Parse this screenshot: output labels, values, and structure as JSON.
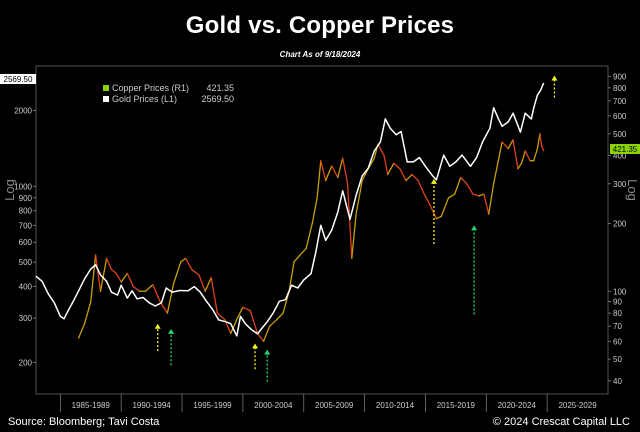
{
  "header": {
    "title": "Gold vs. Copper Prices",
    "subtitle": "Chart As of 9/18/2024"
  },
  "footer": {
    "source": "Source: Bloomberg; Tavi Costa",
    "copyright": "© 2024 Crescat Capital LLC"
  },
  "colors": {
    "gold": "#ffffff",
    "copper_up": "#c9a000",
    "copper_down": "#e0401b",
    "copper_legend": "#8cd400",
    "arrow_yellow": "#f2f21e",
    "arrow_green": "#27d76b",
    "last_copper_tag": "#8cd400"
  },
  "chart_data": {
    "type": "line",
    "log_scale": true,
    "left_axis_label": "Log",
    "right_axis_label": "Log",
    "left_ticks": [
      "2000",
      "1000",
      "900",
      "800",
      "700",
      "600",
      "500",
      "400",
      "300",
      "200"
    ],
    "right_ticks": [
      "900",
      "800",
      "700",
      "600",
      "500",
      "400",
      "300",
      "200",
      "100",
      "90",
      "80",
      "70",
      "60",
      "50",
      "40"
    ],
    "ylim_left": [
      150,
      3000
    ],
    "ylim_right": [
      35,
      1000
    ],
    "x_categories": [
      "1985-1989",
      "1990-1994",
      "1995-1999",
      "2000-2004",
      "2005-2009",
      "2010-2014",
      "2015-2019",
      "2020-2024",
      "2025-2029"
    ],
    "xlim": [
      1983,
      2030
    ],
    "legend": [
      {
        "name": "Copper Prices (R1)",
        "value": "421.35"
      },
      {
        "name": "Gold Prices (L1)",
        "value": "2569.50"
      }
    ],
    "last_gold_tag": "2569.50",
    "last_copper_tag": "421.35",
    "series": [
      {
        "name": "Gold Prices (L1)",
        "axis": "left",
        "points": [
          [
            1983.0,
            440
          ],
          [
            1983.5,
            420
          ],
          [
            1984.0,
            375
          ],
          [
            1984.5,
            345
          ],
          [
            1985.0,
            305
          ],
          [
            1985.3,
            298
          ],
          [
            1985.7,
            325
          ],
          [
            1986.0,
            345
          ],
          [
            1986.5,
            385
          ],
          [
            1987.0,
            430
          ],
          [
            1987.5,
            470
          ],
          [
            1987.9,
            488
          ],
          [
            1988.3,
            445
          ],
          [
            1988.8,
            420
          ],
          [
            1989.2,
            380
          ],
          [
            1989.7,
            370
          ],
          [
            1990.0,
            405
          ],
          [
            1990.5,
            360
          ],
          [
            1990.9,
            385
          ],
          [
            1991.3,
            358
          ],
          [
            1991.8,
            362
          ],
          [
            1992.3,
            345
          ],
          [
            1992.8,
            335
          ],
          [
            1993.3,
            345
          ],
          [
            1993.7,
            395
          ],
          [
            1994.2,
            380
          ],
          [
            1994.8,
            386
          ],
          [
            1995.5,
            385
          ],
          [
            1996.0,
            400
          ],
          [
            1996.5,
            380
          ],
          [
            1997.0,
            350
          ],
          [
            1997.5,
            325
          ],
          [
            1998.0,
            295
          ],
          [
            1998.6,
            290
          ],
          [
            1999.0,
            285
          ],
          [
            1999.5,
            255
          ],
          [
            1999.8,
            305
          ],
          [
            2000.2,
            285
          ],
          [
            2000.7,
            270
          ],
          [
            2001.2,
            260
          ],
          [
            2001.6,
            275
          ],
          [
            2002.0,
            290
          ],
          [
            2002.5,
            315
          ],
          [
            2003.0,
            350
          ],
          [
            2003.5,
            355
          ],
          [
            2004.0,
            405
          ],
          [
            2004.5,
            395
          ],
          [
            2005.0,
            425
          ],
          [
            2005.6,
            450
          ],
          [
            2006.0,
            550
          ],
          [
            2006.4,
            700
          ],
          [
            2006.8,
            610
          ],
          [
            2007.3,
            670
          ],
          [
            2007.8,
            790
          ],
          [
            2008.2,
            960
          ],
          [
            2008.8,
            740
          ],
          [
            2009.3,
            920
          ],
          [
            2009.8,
            1100
          ],
          [
            2010.3,
            1180
          ],
          [
            2010.8,
            1380
          ],
          [
            2011.3,
            1500
          ],
          [
            2011.7,
            1850
          ],
          [
            2012.1,
            1700
          ],
          [
            2012.6,
            1600
          ],
          [
            2013.0,
            1650
          ],
          [
            2013.5,
            1250
          ],
          [
            2014.0,
            1250
          ],
          [
            2014.5,
            1300
          ],
          [
            2015.0,
            1200
          ],
          [
            2015.6,
            1100
          ],
          [
            2015.9,
            1060
          ],
          [
            2016.5,
            1330
          ],
          [
            2017.0,
            1200
          ],
          [
            2017.5,
            1250
          ],
          [
            2018.0,
            1330
          ],
          [
            2018.7,
            1200
          ],
          [
            2019.2,
            1300
          ],
          [
            2019.7,
            1500
          ],
          [
            2020.3,
            1700
          ],
          [
            2020.6,
            2050
          ],
          [
            2021.0,
            1850
          ],
          [
            2021.3,
            1730
          ],
          [
            2021.8,
            1800
          ],
          [
            2022.2,
            1950
          ],
          [
            2022.8,
            1640
          ],
          [
            2023.2,
            1950
          ],
          [
            2023.7,
            1850
          ],
          [
            2023.9,
            2050
          ],
          [
            2024.2,
            2300
          ],
          [
            2024.45,
            2400
          ],
          [
            2024.72,
            2569.5
          ]
        ]
      },
      {
        "name": "Copper Prices (R1)",
        "axis": "right",
        "points": [
          [
            1986.5,
            62
          ],
          [
            1987.0,
            72
          ],
          [
            1987.5,
            90
          ],
          [
            1987.9,
            145
          ],
          [
            1988.3,
            100
          ],
          [
            1988.8,
            140
          ],
          [
            1989.2,
            125
          ],
          [
            1989.6,
            120
          ],
          [
            1990.0,
            110
          ],
          [
            1990.5,
            120
          ],
          [
            1991.0,
            105
          ],
          [
            1991.5,
            100
          ],
          [
            1992.0,
            100
          ],
          [
            1992.6,
            107
          ],
          [
            1993.2,
            90
          ],
          [
            1993.8,
            80
          ],
          [
            1994.3,
            108
          ],
          [
            1994.9,
            135
          ],
          [
            1995.3,
            140
          ],
          [
            1995.8,
            125
          ],
          [
            1996.4,
            118
          ],
          [
            1996.9,
            100
          ],
          [
            1997.4,
            115
          ],
          [
            1997.9,
            80
          ],
          [
            1998.5,
            75
          ],
          [
            1999.0,
            65
          ],
          [
            1999.5,
            75
          ],
          [
            2000.0,
            85
          ],
          [
            2000.6,
            82
          ],
          [
            2001.2,
            65
          ],
          [
            2001.7,
            60
          ],
          [
            2002.2,
            70
          ],
          [
            2002.8,
            75
          ],
          [
            2003.3,
            80
          ],
          [
            2003.8,
            100
          ],
          [
            2004.2,
            135
          ],
          [
            2004.7,
            145
          ],
          [
            2005.2,
            155
          ],
          [
            2005.7,
            200
          ],
          [
            2006.1,
            260
          ],
          [
            2006.4,
            380
          ],
          [
            2006.8,
            310
          ],
          [
            2007.3,
            360
          ],
          [
            2007.8,
            320
          ],
          [
            2008.2,
            390
          ],
          [
            2008.6,
            300
          ],
          [
            2008.95,
            140
          ],
          [
            2009.3,
            220
          ],
          [
            2009.8,
            310
          ],
          [
            2010.3,
            350
          ],
          [
            2010.8,
            390
          ],
          [
            2011.1,
            450
          ],
          [
            2011.6,
            400
          ],
          [
            2011.9,
            330
          ],
          [
            2012.4,
            370
          ],
          [
            2012.9,
            350
          ],
          [
            2013.4,
            310
          ],
          [
            2013.9,
            330
          ],
          [
            2014.4,
            310
          ],
          [
            2014.9,
            270
          ],
          [
            2015.4,
            240
          ],
          [
            2015.9,
            210
          ],
          [
            2016.3,
            215
          ],
          [
            2016.9,
            260
          ],
          [
            2017.4,
            270
          ],
          [
            2017.9,
            320
          ],
          [
            2018.4,
            300
          ],
          [
            2018.9,
            270
          ],
          [
            2019.4,
            265
          ],
          [
            2019.8,
            270
          ],
          [
            2020.2,
            220
          ],
          [
            2020.6,
            300
          ],
          [
            2020.9,
            360
          ],
          [
            2021.3,
            460
          ],
          [
            2021.8,
            430
          ],
          [
            2022.2,
            470
          ],
          [
            2022.6,
            350
          ],
          [
            2022.9,
            370
          ],
          [
            2023.2,
            420
          ],
          [
            2023.6,
            380
          ],
          [
            2023.9,
            380
          ],
          [
            2024.2,
            430
          ],
          [
            2024.4,
            500
          ],
          [
            2024.55,
            440
          ],
          [
            2024.72,
            421.35
          ]
        ]
      }
    ],
    "arrows": [
      {
        "x": 1993.0,
        "color": "yellow",
        "y_top_left": 285,
        "y_bottom_left": 222,
        "dir": "up"
      },
      {
        "x": 1994.1,
        "color": "green",
        "y_top_left": 272,
        "y_bottom_left": 195,
        "dir": "up"
      },
      {
        "x": 2001.0,
        "color": "yellow",
        "y_top_left": 238,
        "y_bottom_left": 188,
        "dir": "up"
      },
      {
        "x": 2002.0,
        "color": "green",
        "y_top_left": 225,
        "y_bottom_left": 168,
        "dir": "up"
      },
      {
        "x": 2015.7,
        "color": "yellow",
        "y_top_left": 1070,
        "y_bottom_left": 590,
        "dir": "up"
      },
      {
        "x": 2019.0,
        "color": "green",
        "y_top_left": 700,
        "y_bottom_left": 310,
        "dir": "up"
      },
      {
        "x": 2025.6,
        "color": "yellow",
        "y_top_left": 2750,
        "y_bottom_left": 2250,
        "dir": "up"
      }
    ]
  }
}
